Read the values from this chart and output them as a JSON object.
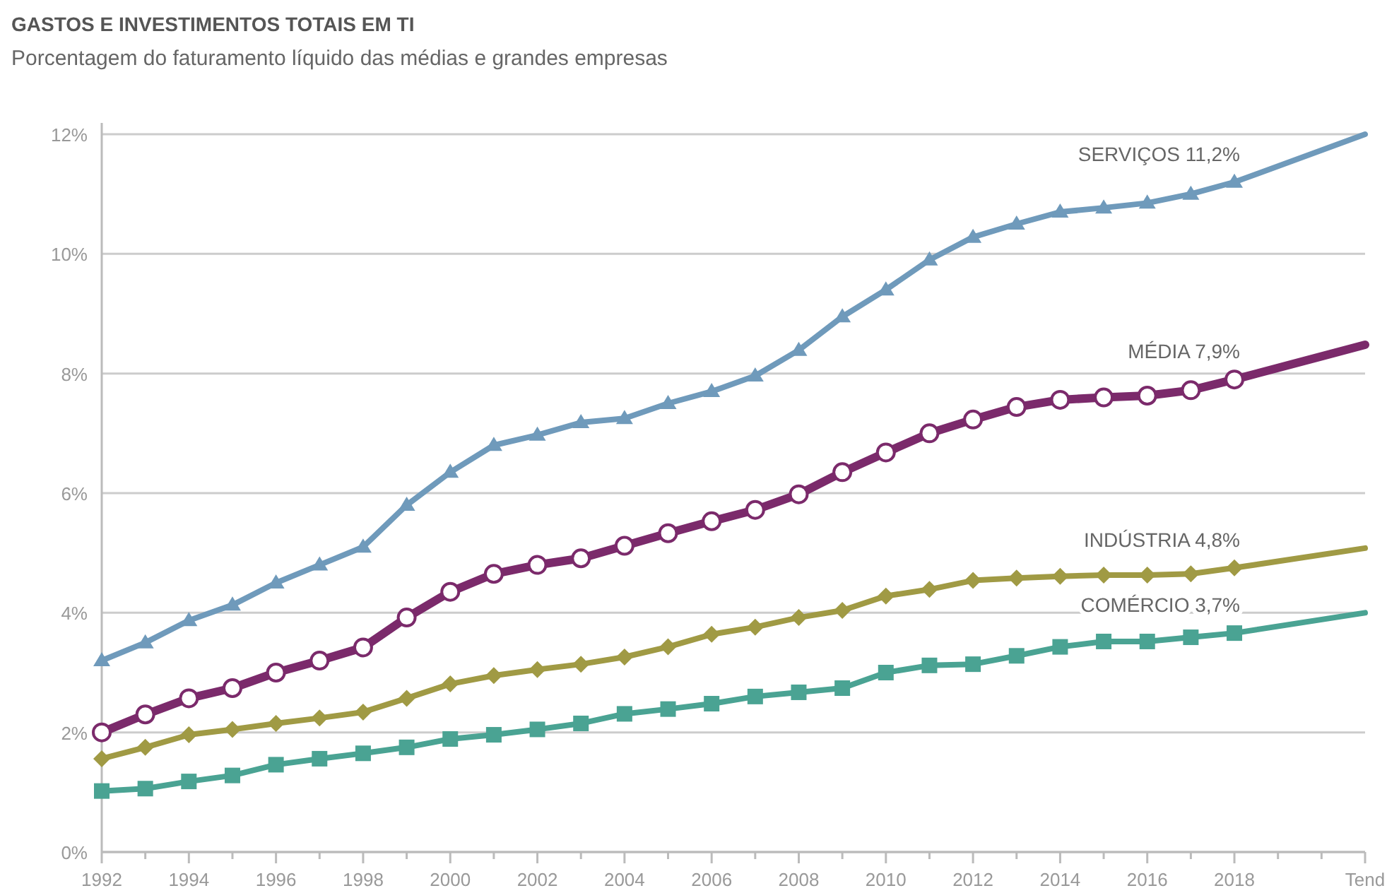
{
  "chart_data": {
    "type": "line",
    "title": "GASTOS E INVESTIMENTOS TOTAIS EM TI",
    "subtitle": "Porcentagem do faturamento líquido das médias e grandes empresas",
    "xlim": [
      1992,
      2021
    ],
    "xticks": [
      1992,
      {
        "value": 1993,
        "label": null
      },
      1994,
      {
        "value": 1995,
        "label": null
      },
      1996,
      {
        "value": 1997,
        "label": null
      },
      1998,
      {
        "value": 1999,
        "label": null
      },
      2000,
      {
        "value": 2001,
        "label": null
      },
      2002,
      {
        "value": 2003,
        "label": null
      },
      2004,
      {
        "value": 2005,
        "label": null
      },
      2006,
      {
        "value": 2007,
        "label": null
      },
      2008,
      {
        "value": 2009,
        "label": null
      },
      2010,
      {
        "value": 2011,
        "label": null
      },
      2012,
      {
        "value": 2013,
        "label": null
      },
      2014,
      {
        "value": 2015,
        "label": null
      },
      2016,
      {
        "value": 2017,
        "label": null
      },
      2018,
      {
        "value": 2019,
        "label": null
      },
      {
        "value": 2020,
        "label": null
      },
      {
        "value": 2021,
        "label": "Tend"
      }
    ],
    "ylim": [
      0,
      12
    ],
    "yticks": [
      {
        "value": 0,
        "label": "0%"
      },
      {
        "value": 2,
        "label": "2%"
      },
      {
        "value": 4,
        "label": "4%"
      },
      {
        "value": 6,
        "label": "6%"
      },
      {
        "value": 8,
        "label": "8%"
      },
      {
        "value": 10,
        "label": "10%"
      },
      {
        "value": 12,
        "label": "12%"
      }
    ],
    "grid": "y",
    "x": [
      1992,
      1993,
      1994,
      1995,
      1996,
      1997,
      1998,
      1999,
      2000,
      2001,
      2002,
      2003,
      2004,
      2005,
      2006,
      2007,
      2008,
      2009,
      2010,
      2011,
      2012,
      2013,
      2014,
      2015,
      2016,
      2017,
      2018,
      2021
    ],
    "series": [
      {
        "name": "SERVIÇOS 11,2%",
        "color": "#6f9abb",
        "marker": "triangle",
        "values": [
          3.2,
          3.5,
          3.87,
          4.13,
          4.5,
          4.8,
          5.1,
          5.8,
          6.35,
          6.8,
          6.97,
          7.18,
          7.25,
          7.5,
          7.7,
          7.96,
          8.39,
          8.95,
          9.4,
          9.9,
          10.28,
          10.5,
          10.7,
          10.77,
          10.85,
          11.0,
          11.2,
          12.0
        ]
      },
      {
        "name": "MÉDIA 7,9%",
        "color": "#7b2a6b",
        "marker": "circle",
        "values": [
          2.0,
          2.3,
          2.57,
          2.74,
          3.0,
          3.2,
          3.42,
          3.92,
          4.35,
          4.65,
          4.8,
          4.91,
          5.12,
          5.33,
          5.53,
          5.72,
          5.98,
          6.35,
          6.68,
          7.0,
          7.23,
          7.44,
          7.56,
          7.6,
          7.63,
          7.72,
          7.9,
          8.48
        ]
      },
      {
        "name": "INDÚSTRIA 4,8%",
        "color": "#a09a44",
        "marker": "diamond",
        "values": [
          1.56,
          1.75,
          1.96,
          2.05,
          2.15,
          2.24,
          2.34,
          2.57,
          2.81,
          2.95,
          3.05,
          3.14,
          3.26,
          3.43,
          3.64,
          3.76,
          3.92,
          4.04,
          4.28,
          4.39,
          4.54,
          4.58,
          4.61,
          4.63,
          4.63,
          4.65,
          4.75,
          5.08
        ]
      },
      {
        "name": "COMÉRCIO 3,7%",
        "color": "#4aa393",
        "marker": "square",
        "values": [
          1.02,
          1.06,
          1.18,
          1.28,
          1.46,
          1.56,
          1.65,
          1.75,
          1.89,
          1.96,
          2.05,
          2.15,
          2.31,
          2.39,
          2.48,
          2.6,
          2.67,
          2.74,
          3.0,
          3.12,
          3.14,
          3.28,
          3.43,
          3.52,
          3.52,
          3.59,
          3.66,
          4.0
        ]
      }
    ]
  }
}
